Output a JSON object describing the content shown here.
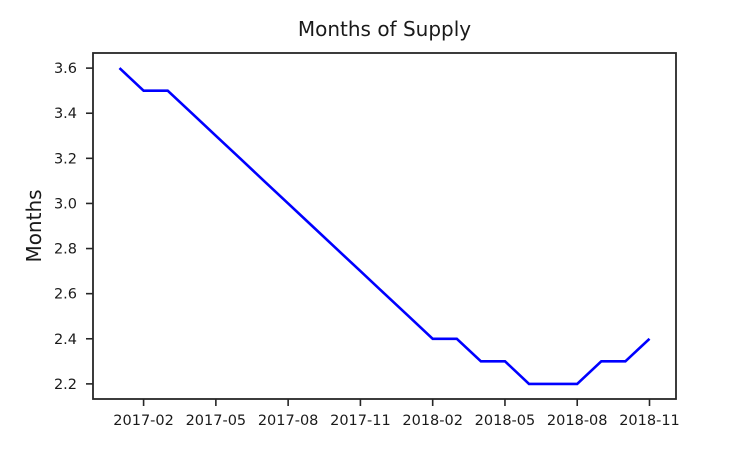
{
  "chart_data": {
    "type": "line",
    "title": "Months of Supply",
    "xlabel": "",
    "ylabel": "Months",
    "x": [
      "2017-01",
      "2017-02",
      "2017-03",
      "2017-04",
      "2017-05",
      "2017-06",
      "2017-07",
      "2017-08",
      "2017-09",
      "2017-10",
      "2017-11",
      "2017-12",
      "2018-01",
      "2018-02",
      "2018-03",
      "2018-04",
      "2018-05",
      "2018-06",
      "2018-07",
      "2018-08",
      "2018-09",
      "2018-10",
      "2018-11"
    ],
    "values": [
      3.6,
      3.5,
      3.5,
      3.4,
      3.3,
      3.2,
      3.1,
      3.0,
      2.9,
      2.8,
      2.7,
      2.6,
      2.5,
      2.4,
      2.4,
      2.3,
      2.3,
      2.2,
      2.2,
      2.2,
      2.3,
      2.3,
      2.4
    ],
    "x_tick_labels": [
      "2017-02",
      "2017-05",
      "2017-08",
      "2017-11",
      "2018-02",
      "2018-05",
      "2018-08",
      "2018-11"
    ],
    "y_ticks": [
      2.2,
      2.4,
      2.6,
      2.8,
      3.0,
      3.2,
      3.4,
      3.6
    ],
    "ylim": [
      2.133,
      3.667
    ],
    "x_index_lim": [
      -1.1,
      23.1
    ],
    "line_color": "#0000ff",
    "axis_color": "#262626",
    "grid": false,
    "legend": null
  }
}
